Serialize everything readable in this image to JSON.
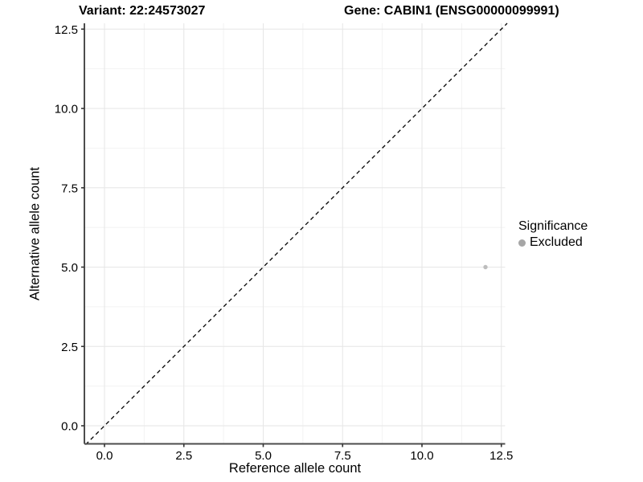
{
  "titles": {
    "left": "Variant: 22:24573027",
    "right": "Gene: CABIN1 (ENSG00000099991)"
  },
  "legend": {
    "title": "Significance",
    "items": [
      {
        "label": "Excluded",
        "color": "#a6a6a6"
      }
    ]
  },
  "chart_data": {
    "type": "scatter",
    "title_left": "Variant: 22:24573027",
    "title_right": "Gene: CABIN1 (ENSG00000099991)",
    "xlabel": "Reference allele count",
    "ylabel": "Alternative allele count",
    "xlim": [
      -0.6,
      12.65
    ],
    "ylim": [
      -0.57,
      12.68
    ],
    "xticks": [
      0,
      2.5,
      5,
      7.5,
      10,
      12.5
    ],
    "yticks": [
      0,
      2.5,
      5,
      7.5,
      10,
      12.5
    ],
    "xtick_labels": [
      "0.0",
      "2.5",
      "5.0",
      "7.5",
      "10.0",
      "12.5"
    ],
    "ytick_labels": [
      "0.0",
      "2.5",
      "5.0",
      "7.5",
      "10.0",
      "12.5"
    ],
    "minor_ticks": [
      1.25,
      3.75,
      6.25,
      8.75,
      11.25
    ],
    "grid": true,
    "legend_position": "right",
    "series": [
      {
        "name": "Excluded",
        "color": "#bdbdbd",
        "point_radius": 2.7,
        "points": [
          {
            "x": 12,
            "y": 5
          }
        ]
      }
    ],
    "reference_line": {
      "type": "abline",
      "slope": 1,
      "intercept": 0,
      "style": "dashed",
      "color": "#000000",
      "width": 1.3
    },
    "colors": {
      "axis_line": "#4d4d4d",
      "tick_mark": "#333333",
      "grid_major": "#e6e6e6",
      "grid_minor": "#f2f2f2",
      "tick_label": "#000000",
      "background": "#ffffff"
    }
  }
}
